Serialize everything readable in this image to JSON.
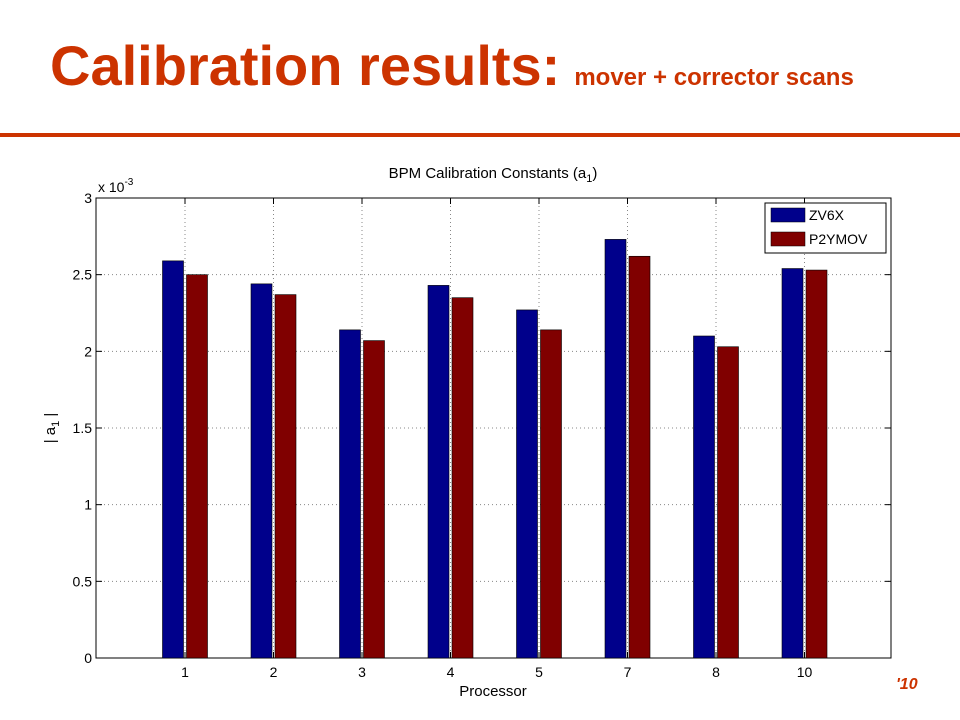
{
  "slide": {
    "title_main": "Calibration results:",
    "title_sub": "mover + corrector scans",
    "footer_note": "'10",
    "accent_color": "#cc3300"
  },
  "chart_data": {
    "type": "bar",
    "title": "BPM Calibration Constants (a",
    "title_subscript": "1",
    "title_suffix": ")",
    "xlabel": "Processor",
    "ylabel": "| a",
    "ylabel_subscript": "1",
    "ylabel_suffix": " |",
    "y_multiplier": "x 10",
    "y_multiplier_exponent": "-3",
    "categories": [
      "1",
      "2",
      "3",
      "4",
      "5",
      "7",
      "8",
      "10"
    ],
    "series": [
      {
        "name": "ZV6X",
        "color": "#00008b",
        "values": [
          2.59,
          2.44,
          2.14,
          2.43,
          2.27,
          2.73,
          2.1,
          2.54
        ]
      },
      {
        "name": "P2YMOV",
        "color": "#800000",
        "values": [
          2.5,
          2.37,
          2.07,
          2.35,
          2.14,
          2.62,
          2.03,
          2.53
        ]
      }
    ],
    "ylim": [
      0,
      3
    ],
    "yticks": [
      "0",
      "0.5",
      "1",
      "1.5",
      "2",
      "2.5",
      "3"
    ],
    "grid": true,
    "legend_position": "top-right"
  }
}
